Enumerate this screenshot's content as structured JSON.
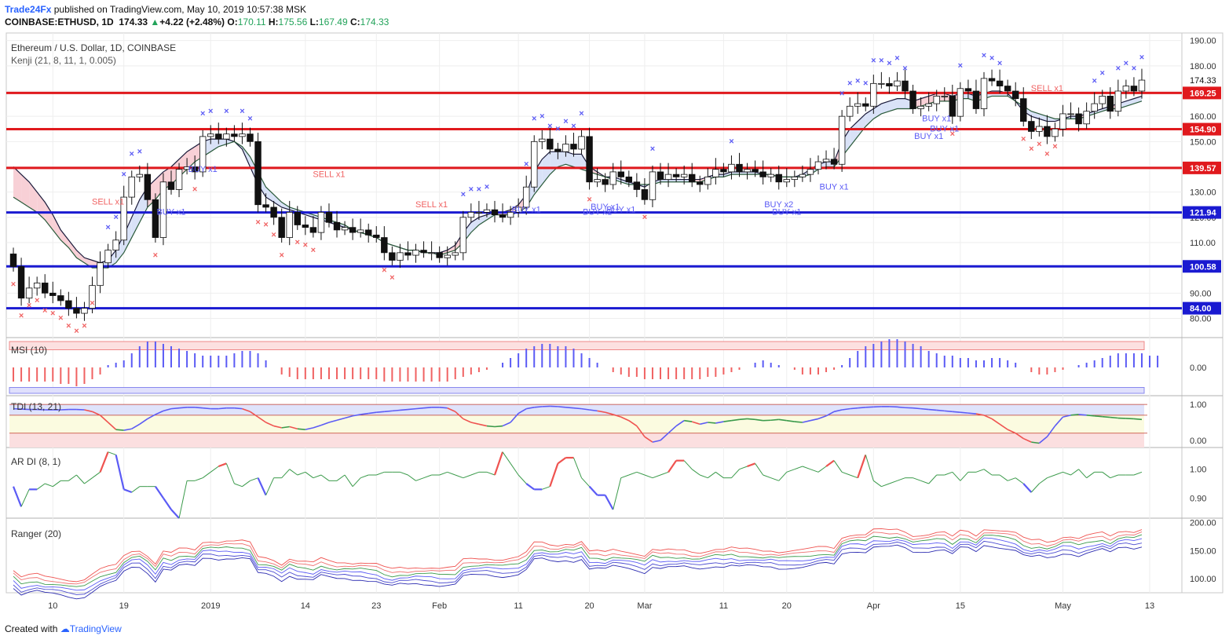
{
  "header": {
    "brand": "Trade24Fx",
    "published": "published on TradingView.com, May 10, 2019 10:57:38 MSK",
    "symbol": "COINBASE:ETHUSD, 1D",
    "last": "174.33",
    "change": "+4.22 (+2.48%)",
    "o_label": "O:",
    "o": "170.11",
    "h_label": "H:",
    "h": "175.56",
    "l_label": "L:",
    "l": "167.49",
    "c_label": "C:",
    "c": "174.33",
    "up_color": "#22a35a"
  },
  "footer": {
    "created": "Created with",
    "brand": "TradingView"
  },
  "colors": {
    "level_red": "#e0191d",
    "level_blue": "#1a1ad1",
    "candle_up": "#ffffff",
    "candle_down": "#111111",
    "marker_blue": "#5b5bf5",
    "marker_red": "#f06262",
    "grid": "#eeeeee"
  },
  "chart_data": [
    {
      "name": "price",
      "type": "candlestick",
      "title": "Ethereum / U.S. Dollar, 1D, COINBASE",
      "indicator": "Kenji (21, 8, 11, 1, 0.005)",
      "yticks": [
        80,
        90,
        100,
        110,
        120,
        130,
        140,
        150,
        160,
        170,
        180,
        190
      ],
      "ylim": [
        73,
        193
      ],
      "xticks": [
        "10",
        "19",
        "2019",
        "14",
        "23",
        "Feb",
        "11",
        "20",
        "Mar",
        "11",
        "20",
        "Apr",
        "15",
        "May",
        "13"
      ],
      "levels": [
        {
          "value": 169.25,
          "label": "169.25",
          "color": "red"
        },
        {
          "value": 154.9,
          "label": "154.90",
          "color": "red"
        },
        {
          "value": 139.57,
          "label": "139.57",
          "color": "red"
        },
        {
          "value": 121.94,
          "label": "121.94",
          "color": "blue"
        },
        {
          "value": 100.58,
          "label": "100.58",
          "color": "blue"
        },
        {
          "value": 84.0,
          "label": "84.00",
          "color": "blue"
        }
      ],
      "last_price": {
        "value": 174.33,
        "label": "174.33"
      },
      "close": [
        100.5,
        88,
        92,
        94,
        90,
        89,
        87,
        84,
        82,
        84,
        93,
        102,
        107,
        111,
        128,
        136,
        137,
        127,
        112,
        134,
        131,
        139,
        140,
        138,
        152,
        153,
        151,
        153,
        152,
        153,
        150,
        125,
        124,
        120,
        112,
        122,
        117,
        116,
        114,
        122,
        118,
        115,
        116,
        114,
        115,
        113,
        112,
        106,
        103,
        106,
        105,
        107,
        106,
        106,
        104,
        105,
        106,
        120,
        122,
        122,
        123,
        121,
        120,
        122,
        124,
        132,
        150,
        151,
        147,
        146,
        149,
        147,
        152,
        134,
        135,
        133,
        138,
        136,
        134,
        131,
        127,
        138,
        135,
        137,
        136,
        137,
        134,
        133,
        136,
        139,
        138,
        141,
        138,
        139,
        138,
        136,
        137,
        134,
        135,
        136,
        137,
        139,
        142,
        143,
        141,
        160,
        164,
        165,
        164,
        173,
        173,
        172,
        174,
        170,
        163,
        164,
        165,
        168,
        168,
        160,
        171,
        170,
        163,
        175,
        174,
        172,
        170,
        167,
        158,
        154,
        156,
        152,
        155,
        161,
        161,
        157,
        162,
        165,
        168,
        162,
        170,
        172,
        170,
        174.33
      ],
      "mid": [
        128,
        126,
        124,
        122,
        119,
        115,
        111,
        108,
        104,
        102,
        100,
        100,
        100,
        102,
        106,
        112,
        118,
        124,
        127,
        131,
        133,
        136,
        139,
        142,
        144,
        146,
        148,
        149,
        150,
        148,
        144,
        138,
        132,
        129,
        126,
        124,
        123,
        122,
        121,
        120,
        119,
        118,
        117,
        115,
        114,
        113,
        112,
        110,
        109,
        108,
        107,
        107,
        106,
        106,
        105,
        106,
        107,
        110,
        114,
        117,
        119,
        121,
        121,
        121,
        122,
        124,
        129,
        133,
        137,
        140,
        141,
        140,
        139,
        138,
        137,
        136,
        135,
        134,
        133,
        133,
        133,
        133,
        134,
        134,
        134,
        134,
        134,
        134,
        135,
        136,
        136,
        137,
        137,
        137,
        137,
        137,
        137,
        136,
        136,
        136,
        136,
        137,
        139,
        140,
        140,
        144,
        148,
        152,
        156,
        159,
        161,
        162,
        163,
        163,
        163,
        164,
        165,
        166,
        166,
        166,
        167,
        167,
        166,
        167,
        168,
        168,
        168,
        166,
        164,
        162,
        161,
        160,
        159,
        159,
        159,
        159,
        160,
        161,
        162,
        163,
        163,
        164,
        165,
        166
      ],
      "band": [
        140,
        137,
        134,
        130,
        126,
        121,
        115,
        111,
        107,
        104,
        103,
        102,
        103,
        107,
        113,
        120,
        127,
        132,
        135,
        138,
        140,
        143,
        146,
        148,
        150,
        151,
        151,
        151,
        150,
        147,
        140,
        133,
        128,
        126,
        124,
        123,
        122,
        121,
        120,
        119,
        118,
        117,
        116,
        115,
        114,
        113,
        112,
        110,
        109,
        108,
        107,
        107,
        106,
        106,
        106,
        107,
        109,
        114,
        118,
        120,
        121,
        122,
        122,
        123,
        125,
        129,
        138,
        143,
        146,
        146,
        146,
        145,
        145,
        140,
        138,
        136,
        136,
        135,
        134,
        133,
        132,
        134,
        135,
        135,
        135,
        135,
        135,
        135,
        136,
        137,
        137,
        138,
        138,
        138,
        138,
        137,
        137,
        136,
        136,
        136,
        137,
        139,
        141,
        142,
        142,
        150,
        155,
        158,
        161,
        163,
        165,
        166,
        167,
        167,
        166,
        167,
        168,
        169,
        169,
        168,
        169,
        169,
        168,
        169,
        170,
        170,
        169,
        166,
        162,
        160,
        159,
        158,
        158,
        159,
        160,
        160,
        161,
        162,
        163,
        164,
        165,
        166,
        167,
        168
      ],
      "buy_signals": [
        {
          "i": 20,
          "label": "BUY x1"
        },
        {
          "i": 24,
          "label": "BUY x1"
        },
        {
          "i": 65,
          "label": "BUY x1"
        },
        {
          "i": 74,
          "label": "BUY x1"
        },
        {
          "i": 75,
          "label": "BUY x1"
        },
        {
          "i": 77,
          "label": "BUY x1"
        },
        {
          "i": 97,
          "label": "BUY x2"
        },
        {
          "i": 98,
          "label": "BUY x1"
        },
        {
          "i": 104,
          "label": "BUY x1"
        },
        {
          "i": 116,
          "label": "BUY x1"
        },
        {
          "i": 117,
          "label": "BUY x1"
        },
        {
          "i": 118,
          "label": "BUY x1"
        }
      ],
      "sell_signals": [
        {
          "i": 12,
          "label": "SELL x1"
        },
        {
          "i": 40,
          "label": "SELL x1"
        },
        {
          "i": 53,
          "label": "SELL x1"
        },
        {
          "i": 131,
          "label": "SELL x1"
        }
      ]
    },
    {
      "name": "MSI (10)",
      "type": "histogram",
      "ylim": [
        -1.2,
        1.2
      ],
      "yticks": [
        0.0
      ],
      "tick_labels": [
        "0.00"
      ],
      "values": [
        -0.6,
        -0.6,
        -0.6,
        -0.6,
        -0.6,
        -0.6,
        -0.7,
        -0.7,
        -0.8,
        -0.7,
        -0.5,
        -0.3,
        0.1,
        0.2,
        0.3,
        0.6,
        0.9,
        1.1,
        1.1,
        1.0,
        0.9,
        0.8,
        0.7,
        0.6,
        0.5,
        0.5,
        0.5,
        0.5,
        0.6,
        0.7,
        0.7,
        0.6,
        0.3,
        0.0,
        -0.3,
        -0.4,
        -0.5,
        -0.5,
        -0.5,
        -0.5,
        -0.5,
        -0.5,
        -0.5,
        -0.5,
        -0.5,
        -0.5,
        -0.5,
        -0.6,
        -0.6,
        -0.6,
        -0.6,
        -0.6,
        -0.6,
        -0.6,
        -0.6,
        -0.6,
        -0.5,
        -0.4,
        -0.3,
        -0.2,
        -0.1,
        0.0,
        0.2,
        0.4,
        0.6,
        0.8,
        0.9,
        1.0,
        1.0,
        0.9,
        0.9,
        0.8,
        0.6,
        0.4,
        0.2,
        0.0,
        -0.2,
        -0.3,
        -0.4,
        -0.4,
        -0.5,
        -0.5,
        -0.5,
        -0.5,
        -0.5,
        -0.5,
        -0.5,
        -0.5,
        -0.4,
        -0.4,
        -0.3,
        -0.2,
        -0.1,
        0.0,
        0.2,
        0.3,
        0.2,
        0.1,
        0.0,
        -0.1,
        -0.3,
        -0.3,
        -0.3,
        -0.2,
        -0.1,
        0.1,
        0.4,
        0.7,
        0.9,
        1.0,
        1.1,
        1.2,
        1.2,
        1.1,
        1.0,
        0.9,
        0.7,
        0.6,
        0.5,
        0.5,
        0.4,
        0.4,
        0.3,
        0.3,
        0.4,
        0.4,
        0.3,
        0.2,
        0.0,
        -0.2,
        -0.3,
        -0.3,
        -0.2,
        -0.1,
        0.0,
        0.1,
        0.2,
        0.3,
        0.4,
        0.5,
        0.6,
        0.6,
        0.6,
        0.6,
        0.5,
        0.5
      ]
    },
    {
      "name": "TDI (13, 21)",
      "type": "line",
      "ylim": [
        -0.2,
        1.2
      ],
      "yticks": [
        1.0,
        0.0
      ],
      "tick_labels": [
        "1.00",
        "0.00"
      ],
      "values": [
        0.88,
        0.87,
        0.86,
        0.86,
        0.85,
        0.85,
        0.85,
        0.86,
        0.86,
        0.85,
        0.8,
        0.7,
        0.5,
        0.3,
        0.28,
        0.32,
        0.45,
        0.6,
        0.72,
        0.82,
        0.88,
        0.9,
        0.92,
        0.92,
        0.9,
        0.88,
        0.88,
        0.9,
        0.9,
        0.88,
        0.8,
        0.65,
        0.5,
        0.4,
        0.35,
        0.38,
        0.32,
        0.3,
        0.35,
        0.42,
        0.5,
        0.56,
        0.62,
        0.68,
        0.72,
        0.75,
        0.78,
        0.8,
        0.82,
        0.84,
        0.86,
        0.88,
        0.9,
        0.92,
        0.92,
        0.9,
        0.8,
        0.6,
        0.5,
        0.45,
        0.4,
        0.38,
        0.4,
        0.5,
        0.75,
        0.88,
        0.92,
        0.94,
        0.95,
        0.94,
        0.92,
        0.9,
        0.88,
        0.85,
        0.82,
        0.78,
        0.72,
        0.65,
        0.55,
        0.4,
        0.1,
        -0.05,
        0.0,
        0.2,
        0.4,
        0.55,
        0.52,
        0.45,
        0.5,
        0.48,
        0.52,
        0.55,
        0.58,
        0.6,
        0.58,
        0.55,
        0.56,
        0.58,
        0.55,
        0.52,
        0.5,
        0.55,
        0.6,
        0.68,
        0.8,
        0.85,
        0.88,
        0.9,
        0.92,
        0.93,
        0.94,
        0.94,
        0.93,
        0.91,
        0.9,
        0.88,
        0.86,
        0.84,
        0.82,
        0.8,
        0.78,
        0.76,
        0.74,
        0.7,
        0.6,
        0.45,
        0.3,
        0.2,
        0.05,
        -0.05,
        -0.08,
        0.1,
        0.4,
        0.65,
        0.7,
        0.72,
        0.7,
        0.68,
        0.66,
        0.64,
        0.62,
        0.61,
        0.6,
        0.58
      ]
    },
    {
      "name": "AR DI (8, 1)",
      "type": "line",
      "ylim": [
        0.83,
        1.07
      ],
      "yticks": [
        1.0,
        0.9
      ],
      "tick_labels": [
        "1.00",
        "0.90"
      ],
      "values": [
        0.94,
        0.87,
        0.93,
        0.93,
        0.95,
        0.94,
        0.96,
        0.96,
        0.98,
        0.95,
        0.97,
        0.99,
        1.06,
        1.05,
        0.93,
        0.92,
        0.94,
        0.94,
        0.94,
        0.9,
        0.86,
        0.83,
        0.96,
        0.96,
        0.97,
        0.99,
        1.01,
        1.02,
        0.95,
        0.94,
        0.96,
        0.97,
        0.91,
        0.97,
        0.97,
        1.0,
        0.98,
        0.99,
        0.97,
        0.98,
        0.96,
        0.96,
        0.98,
        0.94,
        0.97,
        0.98,
        0.98,
        0.99,
        0.99,
        0.99,
        0.98,
        0.96,
        0.97,
        0.98,
        0.98,
        0.99,
        0.98,
        0.97,
        0.98,
        0.99,
        0.99,
        0.98,
        1.06,
        1.02,
        0.98,
        0.95,
        0.93,
        0.93,
        0.94,
        1.02,
        1.04,
        1.04,
        0.97,
        0.94,
        0.91,
        0.91,
        0.86,
        0.97,
        0.98,
        0.99,
        0.98,
        0.97,
        0.98,
        0.99,
        1.03,
        1.03,
        1.0,
        0.98,
        0.97,
        0.99,
        0.97,
        0.97,
        1.0,
        1.01,
        1.02,
        0.98,
        0.97,
        0.96,
        0.99,
        1.0,
        1.01,
        1.0,
        0.99,
        1.01,
        1.03,
        0.99,
        0.98,
        0.97,
        1.05,
        0.96,
        0.94,
        0.95,
        0.96,
        0.97,
        0.97,
        0.96,
        0.95,
        0.98,
        0.98,
        0.99,
        0.96,
        0.99,
        0.99,
        1.0,
        0.98,
        0.98,
        0.96,
        0.97,
        0.95,
        0.92,
        0.95,
        0.97,
        0.98,
        0.99,
        0.98,
        1.0,
        0.97,
        0.99,
        0.99,
        0.97,
        0.98,
        0.98,
        0.98,
        0.99
      ]
    },
    {
      "name": "Ranger (20)",
      "type": "bands",
      "ylim": [
        75,
        205
      ],
      "yticks": [
        200,
        150,
        100
      ],
      "tick_labels": [
        "200.00",
        "150.00",
        "100.00"
      ],
      "lines": 6
    }
  ]
}
